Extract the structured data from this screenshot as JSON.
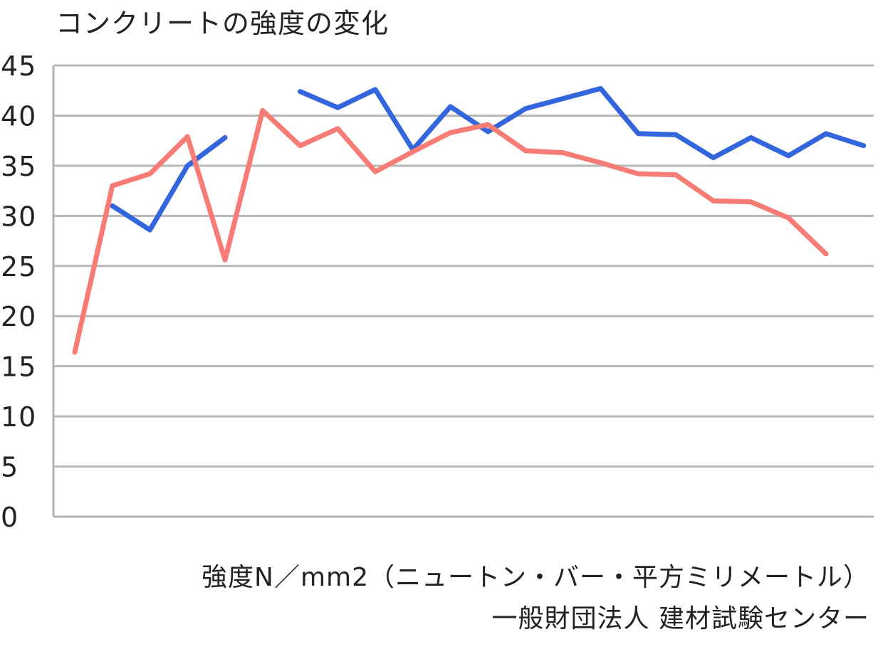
{
  "chart_data": {
    "type": "line",
    "title": "コンクリートの強度の変化",
    "ylim": [
      0,
      45
    ],
    "yticks": [
      "0",
      "5",
      "10",
      "15",
      "20",
      "25",
      "30",
      "35",
      "40",
      "45"
    ],
    "grid": true,
    "x": [
      1,
      2,
      3,
      4,
      5,
      6,
      7,
      8,
      9,
      10,
      11,
      12,
      13,
      14,
      15,
      16,
      17,
      18,
      19,
      20,
      21,
      22,
      23,
      24,
      25
    ],
    "series": [
      {
        "color": "#3366dd",
        "values": [
          null,
          31.0,
          28.6,
          35.0,
          37.8,
          null,
          42.4,
          40.8,
          42.6,
          36.6,
          40.9,
          38.4,
          40.7,
          41.7,
          42.7,
          38.2,
          38.1,
          35.8,
          37.8,
          36.0,
          38.2,
          37.0,
          null,
          null,
          null
        ]
      },
      {
        "color": "#f87c76",
        "values": [
          16.4,
          33.0,
          34.2,
          37.9,
          25.6,
          40.5,
          37.0,
          38.7,
          34.4,
          36.4,
          38.3,
          39.1,
          36.5,
          36.3,
          35.3,
          34.2,
          34.1,
          31.5,
          31.4,
          29.8,
          26.2,
          null,
          null,
          null,
          null
        ]
      }
    ]
  },
  "footnotes": {
    "line1": "強度N／mm2（ニュートン・バー・平方ミリメートル）",
    "line2": "一般財団法人 建材試験センター"
  }
}
